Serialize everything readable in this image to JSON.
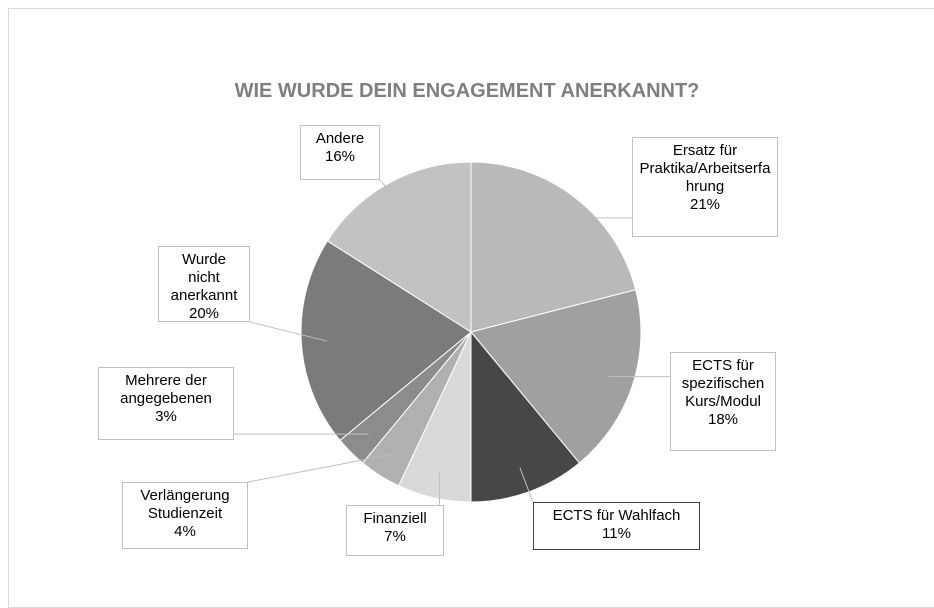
{
  "chart_data": {
    "type": "pie",
    "title": "WIE WURDE DEIN ENGAGEMENT ANERKANNT?",
    "categories": [
      "Ersatz für Praktika/Arbeitserfahrung",
      "ECTS für spezifischen Kurs/Modul",
      "ECTS für Wahlfach",
      "Finanziell",
      "Verlängerung Studienzeit",
      "Mehrere der angegebenen",
      "Wurde nicht anerkannt",
      "Andere"
    ],
    "values": [
      21,
      18,
      11,
      7,
      4,
      3,
      20,
      16
    ],
    "value_labels": [
      "21%",
      "18%",
      "11%",
      "7%",
      "4%",
      "3%",
      "20%",
      "16%"
    ],
    "colors": [
      "#b9b9b9",
      "#a0a0a0",
      "#474747",
      "#d9d9d9",
      "#b0b0b0",
      "#8c8c8c",
      "#7b7b7b",
      "#c2c2c2"
    ]
  }
}
